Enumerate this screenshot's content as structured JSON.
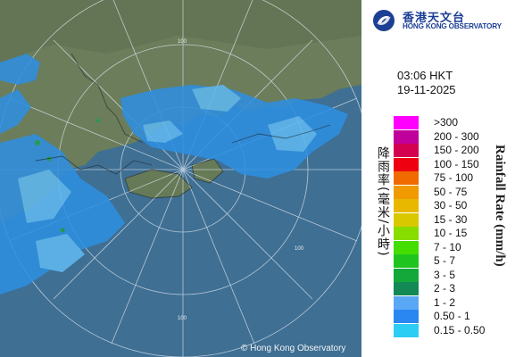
{
  "brand": {
    "name_zh": "香港天文台",
    "name_en": "HONG KONG OBSERVATORY",
    "copyright": "© Hong Kong Observatory"
  },
  "timestamp": {
    "time": "03:06 HKT",
    "date": "19-11-2025"
  },
  "map": {
    "range_ring_label": "100",
    "colors": {
      "sea": "#3f6f93",
      "land": "#6b7d5b",
      "rain_light": "#2f8fe0",
      "rain_moderate": "#5fb8f0",
      "rain_heavy": "#1ca14a"
    }
  },
  "legend": {
    "title_zh": "降雨率(毫米/小時)",
    "title_en": "Rainfall Rate (mm/h)",
    "items": [
      {
        "label": ">300",
        "color": "#ff00ff"
      },
      {
        "label": "200 - 300",
        "color": "#c0009a"
      },
      {
        "label": "150 - 200",
        "color": "#d40050"
      },
      {
        "label": "100 - 150",
        "color": "#ee0010"
      },
      {
        "label": "75 - 100",
        "color": "#f06a00"
      },
      {
        "label": "50 - 75",
        "color": "#f09a00"
      },
      {
        "label": "30 - 50",
        "color": "#e8b800"
      },
      {
        "label": "15 - 30",
        "color": "#d9c800"
      },
      {
        "label": "10 - 15",
        "color": "#88dd00"
      },
      {
        "label": "7 - 10",
        "color": "#44dd00"
      },
      {
        "label": "5 - 7",
        "color": "#1fc41f"
      },
      {
        "label": "3 - 5",
        "color": "#14a83a"
      },
      {
        "label": "2 - 3",
        "color": "#138a55"
      },
      {
        "label": "1 - 2",
        "color": "#5aa8f5"
      },
      {
        "label": "0.50 - 1",
        "color": "#2a86f0"
      },
      {
        "label": "0.15 - 0.50",
        "color": "#2ccdf5"
      }
    ]
  }
}
